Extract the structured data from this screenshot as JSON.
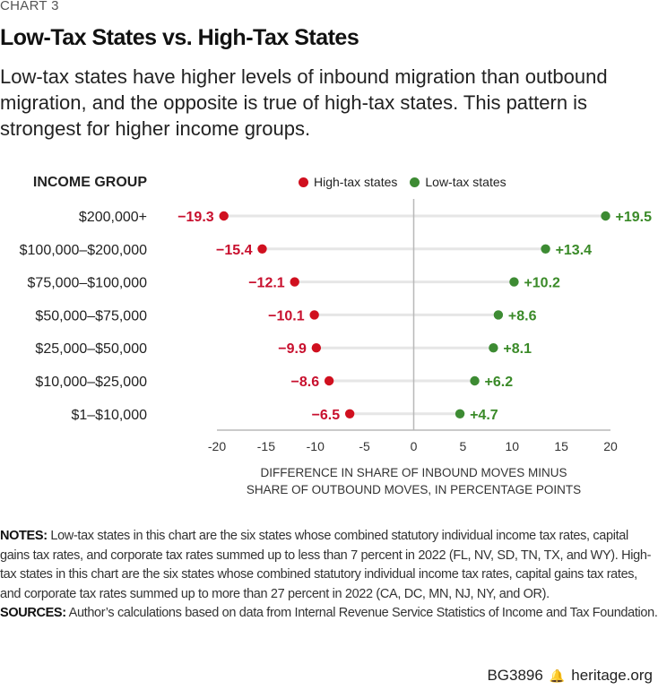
{
  "header": {
    "chart_label": "CHART 3",
    "title": "Low-Tax States vs. High-Tax States",
    "subtitle": "Low-tax states have higher levels of inbound migration than outbound migration, and the opposite is true of high-tax states. This pattern is strongest for higher income groups."
  },
  "colors": {
    "high_tax_dot": "#d0101f",
    "high_tax_label": "#c8102e",
    "low_tax_dot": "#3d8b33",
    "low_tax_label": "#3a8a28",
    "connector": "#e6e6e6",
    "axis": "#b8b8b8"
  },
  "chart_data": {
    "type": "dumbbell",
    "title": "Low-Tax States vs. High-Tax States",
    "y_header": "INCOME GROUP",
    "categories": [
      "$200,000+",
      "$100,000–$200,000",
      "$75,000–$100,000",
      "$50,000–$75,000",
      "$25,000–$50,000",
      "$10,000–$25,000",
      "$1–$10,000"
    ],
    "series": [
      {
        "name": "High-tax states",
        "values": [
          -19.3,
          -15.4,
          -12.1,
          -10.1,
          -9.9,
          -8.6,
          -6.5
        ],
        "labels": [
          "−19.3",
          "−15.4",
          "−12.1",
          "−10.1",
          "−9.9",
          "−8.6",
          "−6.5"
        ]
      },
      {
        "name": "Low-tax states",
        "values": [
          19.5,
          13.4,
          10.2,
          8.6,
          8.1,
          6.2,
          4.7
        ],
        "labels": [
          "+19.5",
          "+13.4",
          "+10.2",
          "+8.6",
          "+8.1",
          "+6.2",
          "+4.7"
        ]
      }
    ],
    "x_ticks": [
      -20,
      -15,
      -10,
      -5,
      0,
      5,
      10,
      15,
      20
    ],
    "x_tick_labels": [
      "-20",
      "-15",
      "-10",
      "-5",
      "0",
      "5",
      "10",
      "15",
      "20"
    ],
    "xlim": [
      -20,
      20
    ],
    "xlabel_lines": [
      "DIFFERENCE IN SHARE OF INBOUND MOVES MINUS",
      "SHARE OF OUTBOUND MOVES, IN PERCENTAGE POINTS"
    ],
    "legend_position": "top",
    "grid": false
  },
  "notes": {
    "notes_label": "NOTES:",
    "notes_text": " Low-tax states in this chart are the six states whose combined statutory individual income tax rates, capital gains tax rates, and corporate tax rates summed up to less than 7 percent in 2022 (FL, NV, SD, TN, TX, and WY). High-tax states in this chart are the six states whose combined statutory individual income tax rates, capital gains tax rates, and corporate tax rates summed up to more than 27 percent in 2022 (CA, DC, MN, NJ, NY, and OR).",
    "sources_label": "SOURCES:",
    "sources_text": " Author’s calculations based on data from Internal Revenue Service Statistics of Income and Tax Foundation."
  },
  "footer": {
    "report_id": "BG3896",
    "logo_icon": "liberty-bell-icon",
    "site": "heritage.org"
  }
}
